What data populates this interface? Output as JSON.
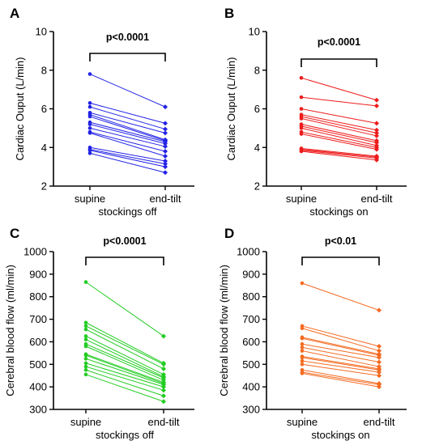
{
  "chart_data": [
    {
      "panel": "A",
      "type": "line",
      "annotation": "p<0.0001",
      "ylabel": "Cardiac Ouput  (L/min)",
      "xlabel": "stockings off",
      "categories": [
        "supine",
        "end-tilt"
      ],
      "ylim": [
        2,
        10
      ],
      "yticks": [
        2,
        4,
        6,
        8,
        10
      ],
      "color": "#2323e6",
      "pairs": [
        [
          7.8,
          6.1
        ],
        [
          6.3,
          5.25
        ],
        [
          6.1,
          4.95
        ],
        [
          5.8,
          4.75
        ],
        [
          5.7,
          4.4
        ],
        [
          5.6,
          4.35
        ],
        [
          5.3,
          4.3
        ],
        [
          5.2,
          4.2
        ],
        [
          5.0,
          4.05
        ],
        [
          4.8,
          3.8
        ],
        [
          4.75,
          3.55
        ],
        [
          4.0,
          3.3
        ],
        [
          3.9,
          3.15
        ],
        [
          3.85,
          3.0
        ],
        [
          3.7,
          2.7
        ]
      ]
    },
    {
      "panel": "B",
      "type": "line",
      "annotation": "p<0.0001",
      "ylabel": "Cardiac Ouput  (L/min)",
      "xlabel": "stockings on",
      "categories": [
        "supine",
        "end-tilt"
      ],
      "ylim": [
        2,
        10
      ],
      "yticks": [
        2,
        4,
        6,
        8,
        10
      ],
      "color": "#ee1c1c",
      "pairs": [
        [
          7.6,
          6.45
        ],
        [
          6.6,
          6.15
        ],
        [
          6.0,
          5.25
        ],
        [
          5.7,
          4.9
        ],
        [
          5.6,
          4.75
        ],
        [
          5.5,
          4.6
        ],
        [
          5.2,
          4.35
        ],
        [
          5.1,
          4.25
        ],
        [
          5.0,
          4.1
        ],
        [
          4.8,
          4.0
        ],
        [
          4.7,
          3.9
        ],
        [
          3.95,
          3.55
        ],
        [
          3.9,
          3.5
        ],
        [
          3.85,
          3.45
        ],
        [
          3.8,
          3.35
        ]
      ]
    },
    {
      "panel": "C",
      "type": "line",
      "annotation": "p<0.0001",
      "ylabel": "Cerebral blood flow (ml/min)",
      "xlabel": "stockings off",
      "categories": [
        "supine",
        "end-tilt"
      ],
      "ylim": [
        300,
        1000
      ],
      "yticks": [
        300,
        400,
        500,
        600,
        700,
        800,
        900,
        1000
      ],
      "color": "#22cc22",
      "pairs": [
        [
          865,
          625
        ],
        [
          685,
          505
        ],
        [
          670,
          500
        ],
        [
          655,
          480
        ],
        [
          625,
          455
        ],
        [
          610,
          445
        ],
        [
          590,
          440
        ],
        [
          580,
          430
        ],
        [
          545,
          420
        ],
        [
          540,
          415
        ],
        [
          525,
          410
        ],
        [
          505,
          400
        ],
        [
          490,
          385
        ],
        [
          475,
          360
        ],
        [
          455,
          335
        ]
      ]
    },
    {
      "panel": "D",
      "type": "line",
      "annotation": "p<0.01",
      "ylabel": "Cerebral blood flow (ml/min)",
      "xlabel": "stockings on",
      "categories": [
        "supine",
        "end-tilt"
      ],
      "ylim": [
        300,
        1000
      ],
      "yticks": [
        300,
        400,
        500,
        600,
        700,
        800,
        900,
        1000
      ],
      "color": "#f46b22",
      "pairs": [
        [
          860,
          740
        ],
        [
          670,
          580
        ],
        [
          660,
          560
        ],
        [
          620,
          545
        ],
        [
          615,
          540
        ],
        [
          590,
          530
        ],
        [
          575,
          510
        ],
        [
          560,
          490
        ],
        [
          535,
          480
        ],
        [
          530,
          475
        ],
        [
          515,
          465
        ],
        [
          500,
          450
        ],
        [
          475,
          415
        ],
        [
          465,
          410
        ],
        [
          460,
          400
        ]
      ]
    }
  ]
}
